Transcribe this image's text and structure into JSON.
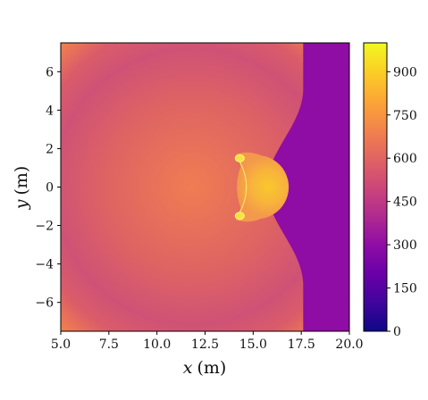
{
  "chart_data": {
    "type": "heatmap",
    "title": "",
    "xlabel": "x (m)",
    "ylabel": "y (m)",
    "xlabel_var": "x",
    "ylabel_var": "y",
    "axis_unit": "(m)",
    "xlim": [
      5.0,
      20.0
    ],
    "ylim": [
      -7.5,
      7.5
    ],
    "x_ticks": [
      5.0,
      7.5,
      10.0,
      12.5,
      15.0,
      17.5,
      20.0
    ],
    "x_tick_labels": [
      "5.0",
      "7.5",
      "10.0",
      "12.5",
      "15.0",
      "17.5",
      "20.0"
    ],
    "y_ticks": [
      6,
      4,
      2,
      0,
      -2,
      -4,
      -6
    ],
    "y_tick_labels": [
      "6",
      "4",
      "2",
      "0",
      "−2",
      "−4",
      "−6"
    ],
    "colormap": "plasma",
    "colorbar": {
      "range": [
        0,
        1000
      ],
      "ticks": [
        0,
        150,
        300,
        450,
        600,
        750,
        900
      ],
      "tick_labels": [
        "0",
        "150",
        "300",
        "450",
        "600",
        "750",
        "900"
      ]
    },
    "regions": {
      "ambient_value": 270,
      "shock_front_x_at_edges": 17.6,
      "shock_front_x_at_center": 15.6,
      "fireball_center": [
        15.1,
        0.0
      ],
      "fireball_radius": 1.8,
      "fireball_value": 880,
      "vortex_points": [
        [
          14.3,
          1.5
        ],
        [
          14.3,
          -1.5
        ]
      ]
    },
    "colors": {
      "ambient": "#8f0da4",
      "hot": "#f9c82c",
      "warm": "#ef7d52",
      "mid": "#d5536f",
      "axis": "#000000"
    }
  }
}
